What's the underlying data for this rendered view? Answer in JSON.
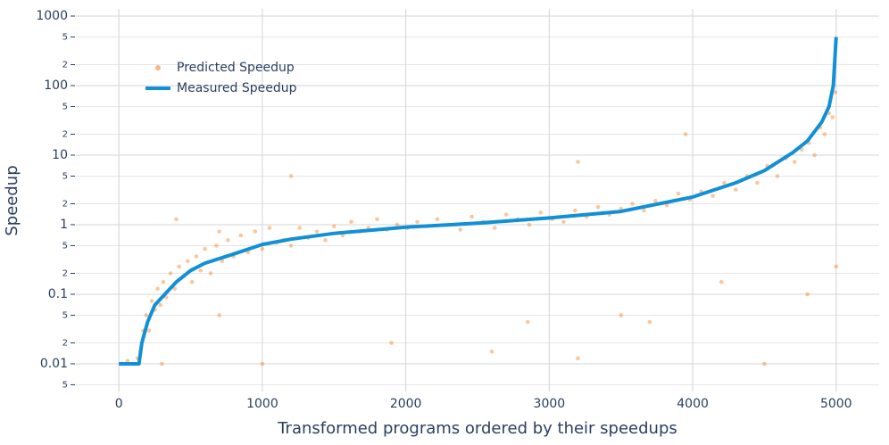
{
  "chart_data": {
    "type": "scatter",
    "xlabel": "Transformed programs ordered by their speedups",
    "ylabel": "Speedup",
    "log_y": true,
    "grid": true,
    "legend": "upper left",
    "xlim": [
      -300,
      5300
    ],
    "xticks": [
      0,
      1000,
      2000,
      3000,
      4000,
      5000
    ],
    "ylim": [
      0.004,
      1000
    ],
    "yticks": [
      {
        "value": 0.005,
        "label": "5"
      },
      0.01,
      {
        "value": 0.02,
        "label": "2"
      },
      {
        "value": 0.05,
        "label": "5"
      },
      0.1,
      {
        "value": 0.2,
        "label": "2"
      },
      {
        "value": 0.5,
        "label": "5"
      },
      1,
      {
        "value": 2,
        "label": "2"
      },
      {
        "value": 5,
        "label": "5"
      },
      10,
      {
        "value": 20,
        "label": "2"
      },
      {
        "value": 50,
        "label": "5"
      },
      100,
      {
        "value": 200,
        "label": "2"
      },
      {
        "value": 500,
        "label": "5"
      },
      1000
    ],
    "series": [
      {
        "name": "Predicted Speedup",
        "type": "scatter",
        "color": "#f5862a",
        "x": [
          20,
          60,
          100,
          130,
          150,
          170,
          190,
          210,
          230,
          250,
          270,
          290,
          310,
          330,
          360,
          390,
          420,
          450,
          480,
          510,
          540,
          570,
          600,
          640,
          680,
          720,
          760,
          800,
          850,
          900,
          950,
          1000,
          1050,
          1100,
          1150,
          1200,
          1260,
          1320,
          1380,
          1440,
          1500,
          1560,
          1620,
          1680,
          1740,
          1800,
          1870,
          1940,
          2010,
          2080,
          2150,
          2220,
          2300,
          2380,
          2460,
          2540,
          2620,
          2700,
          2780,
          2860,
          2940,
          3020,
          3100,
          3180,
          3260,
          3340,
          3420,
          3500,
          3580,
          3660,
          3740,
          3820,
          3900,
          3980,
          4060,
          4140,
          4220,
          4300,
          4380,
          4450,
          4520,
          4590,
          4650,
          4710,
          4760,
          4810,
          4850,
          4890,
          4920,
          4950,
          4975,
          4995,
          300,
          700,
          1000,
          1900,
          2600,
          2850,
          3200,
          3500,
          3700,
          4200,
          4500,
          4800,
          5000,
          3950,
          3200,
          1200,
          700,
          400
        ],
        "values": [
          0.01,
          0.011,
          0.01,
          0.012,
          0.015,
          0.03,
          0.05,
          0.03,
          0.08,
          0.06,
          0.12,
          0.07,
          0.15,
          0.09,
          0.2,
          0.12,
          0.25,
          0.18,
          0.3,
          0.15,
          0.35,
          0.22,
          0.45,
          0.2,
          0.5,
          0.3,
          0.6,
          0.35,
          0.7,
          0.4,
          0.8,
          0.45,
          0.9,
          0.55,
          0.6,
          0.5,
          0.9,
          0.65,
          0.8,
          0.6,
          0.95,
          0.7,
          1.1,
          0.8,
          0.9,
          1.2,
          0.85,
          1.0,
          0.9,
          1.1,
          0.95,
          1.2,
          1.0,
          0.85,
          1.3,
          1.1,
          0.9,
          1.4,
          1.2,
          1.0,
          1.5,
          1.2,
          1.1,
          1.6,
          1.3,
          1.8,
          1.4,
          1.7,
          2.0,
          1.6,
          2.2,
          1.9,
          2.8,
          2.3,
          3.0,
          2.6,
          4.0,
          3.2,
          5.0,
          4.0,
          7.0,
          5.0,
          9.0,
          8.0,
          12,
          15,
          10,
          25,
          20,
          40,
          35,
          80,
          0.01,
          0.05,
          0.01,
          0.02,
          0.015,
          0.04,
          0.012,
          0.05,
          0.04,
          0.15,
          0.01,
          0.1,
          0.25,
          20,
          8,
          5,
          0.8,
          1.2
        ]
      },
      {
        "name": "Measured Speedup",
        "type": "line",
        "color": "#1190d6",
        "x": [
          0,
          140,
          160,
          200,
          250,
          300,
          400,
          500,
          600,
          800,
          1000,
          1200,
          1500,
          2000,
          2500,
          3000,
          3500,
          4000,
          4300,
          4500,
          4700,
          4800,
          4900,
          4950,
          4980,
          5000
        ],
        "values": [
          0.01,
          0.01,
          0.02,
          0.04,
          0.07,
          0.09,
          0.15,
          0.22,
          0.28,
          0.38,
          0.52,
          0.62,
          0.75,
          0.92,
          1.05,
          1.25,
          1.55,
          2.5,
          4,
          6,
          11,
          16,
          30,
          50,
          100,
          500
        ]
      }
    ]
  }
}
